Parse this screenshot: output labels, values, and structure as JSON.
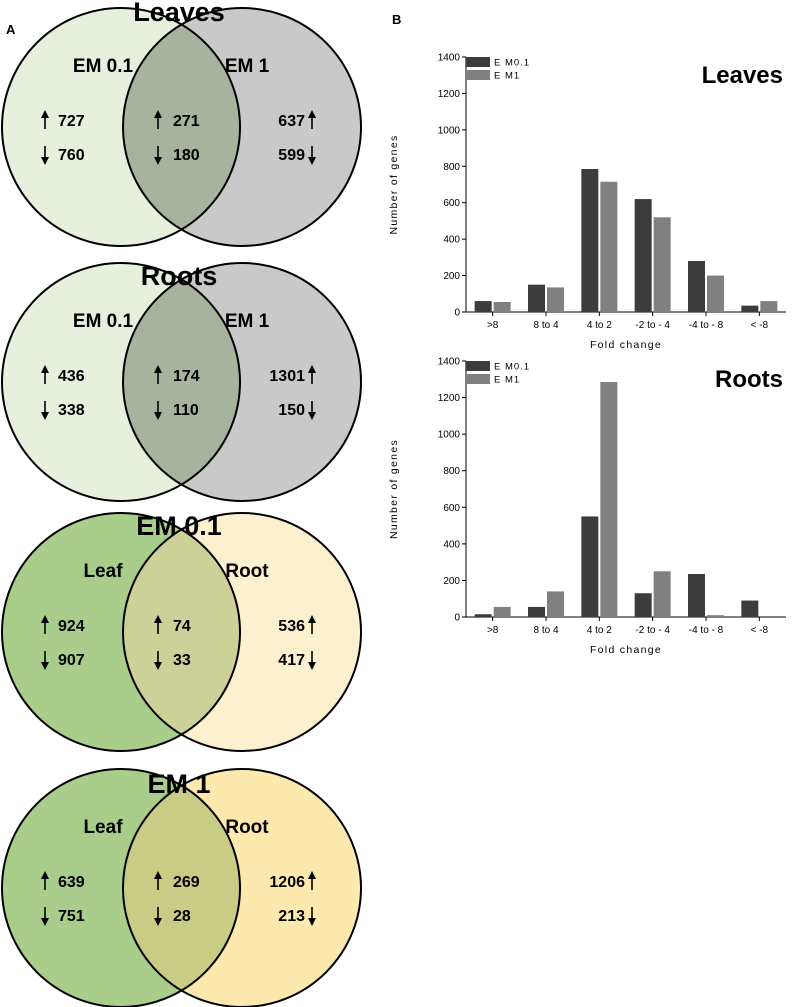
{
  "panels": {
    "a": "A",
    "b": "B"
  },
  "venns": [
    {
      "title": "Leaves",
      "left_label": "EM 0.1",
      "right_label": "EM 1",
      "left_up": "727",
      "left_down": "760",
      "mid_up": "271",
      "mid_down": "180",
      "right_up": "637",
      "right_down": "599",
      "left_color": "#e6f0dc",
      "right_color": "#c9c9c9",
      "overlap_color": "#a8b39e"
    },
    {
      "title": "Roots",
      "left_label": "EM 0.1",
      "right_label": "EM 1",
      "left_up": "436",
      "left_down": "338",
      "mid_up": "174",
      "mid_down": "110",
      "right_up": "1301",
      "right_down": "150",
      "left_color": "#e6f0dc",
      "right_color": "#c9c9c9",
      "overlap_color": "#a8b39e"
    },
    {
      "title": "EM 0.1",
      "left_label": "Leaf",
      "right_label": "Root",
      "left_up": "924",
      "left_down": "907",
      "mid_up": "74",
      "mid_down": "33",
      "right_up": "536",
      "right_down": "417",
      "left_color": "#a9cd8a",
      "right_color": "#fcf0cf",
      "overlap_color": "#ccd197"
    },
    {
      "title": "EM 1",
      "left_label": "Leaf",
      "right_label": "Root",
      "left_up": "639",
      "left_down": "751",
      "mid_up": "269",
      "mid_down": "28",
      "right_up": "1206",
      "right_down": "213",
      "left_color": "#a9cd8a",
      "right_color": "#fde8ae",
      "overlap_color": "#c9cc84"
    }
  ],
  "chart_data": [
    {
      "type": "bar",
      "title": "Leaves",
      "xlabel": "Fold change",
      "ylabel": "Number of genes",
      "ylim": [
        0,
        1400
      ],
      "yticks": [
        0,
        200,
        400,
        600,
        800,
        1000,
        1200,
        1400
      ],
      "categories": [
        ">8",
        "8 to 4",
        "4 to 2",
        "-2 to - 4",
        "-4 to - 8",
        "< -8"
      ],
      "series": [
        {
          "name": "E M0.1",
          "color": "#3c3c3c",
          "values": [
            60,
            150,
            785,
            620,
            280,
            35
          ]
        },
        {
          "name": "E M1",
          "color": "#808080",
          "values": [
            55,
            135,
            715,
            520,
            200,
            60
          ]
        }
      ],
      "legend_position": "top-left"
    },
    {
      "type": "bar",
      "title": "Roots",
      "xlabel": "Fold change",
      "ylabel": "Number of genes",
      "ylim": [
        0,
        1400
      ],
      "yticks": [
        0,
        200,
        400,
        600,
        800,
        1000,
        1200,
        1400
      ],
      "categories": [
        ">8",
        "8 to 4",
        "4 to 2",
        "-2 to - 4",
        "-4 to - 8",
        "< -8"
      ],
      "series": [
        {
          "name": "E M0.1",
          "color": "#3c3c3c",
          "values": [
            15,
            55,
            550,
            130,
            235,
            90
          ]
        },
        {
          "name": "E M1",
          "color": "#808080",
          "values": [
            55,
            140,
            1285,
            250,
            10,
            0
          ]
        }
      ],
      "legend_position": "top-left"
    }
  ]
}
